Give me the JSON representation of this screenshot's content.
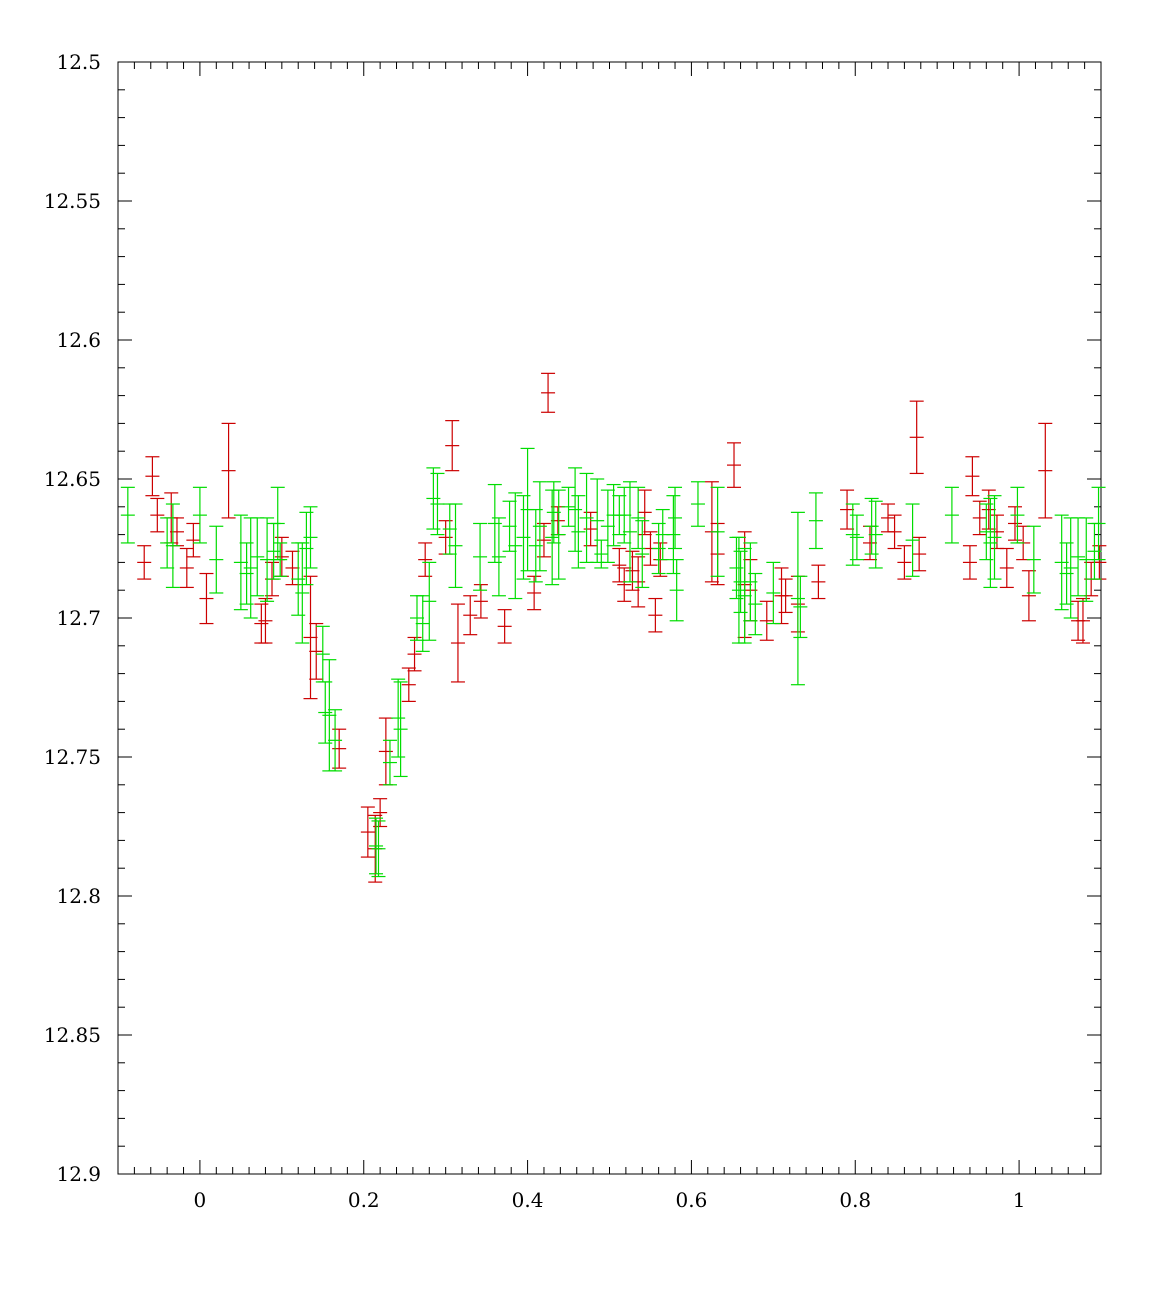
{
  "chart_data": {
    "type": "scatter",
    "title": "",
    "xlabel": "",
    "ylabel": "",
    "xlim": [
      -0.1,
      1.1
    ],
    "ylim": [
      12.5,
      12.9
    ],
    "y_inverted": true,
    "grid": false,
    "xticks": [
      0,
      0.2,
      0.4,
      0.6,
      0.8,
      1
    ],
    "xtick_labels": [
      "0",
      "0.2",
      "0.4",
      "0.6",
      "0.8",
      "1"
    ],
    "yticks": [
      12.5,
      12.55,
      12.6,
      12.65,
      12.7,
      12.75,
      12.8,
      12.85,
      12.9
    ],
    "ytick_labels": [
      "12.5",
      "12.55",
      "12.6",
      "12.65",
      "12.7",
      "12.75",
      "12.8",
      "12.85",
      "12.9"
    ],
    "series": [
      {
        "color": "#cc0000",
        "points": [
          [
            -0.068,
            12.68,
            0.006
          ],
          [
            -0.058,
            12.649,
            0.007
          ],
          [
            -0.052,
            12.663,
            0.006
          ],
          [
            -0.035,
            12.664,
            0.009
          ],
          [
            -0.028,
            12.669,
            0.005
          ],
          [
            -0.016,
            12.682,
            0.007
          ],
          [
            -0.008,
            12.672,
            0.006
          ],
          [
            0.008,
            12.693,
            0.009
          ],
          [
            0.035,
            12.647,
            0.017
          ],
          [
            0.075,
            12.702,
            0.007
          ],
          [
            0.08,
            12.701,
            0.008
          ],
          [
            0.088,
            12.686,
            0.006
          ],
          [
            0.1,
            12.678,
            0.007
          ],
          [
            0.113,
            12.682,
            0.006
          ],
          [
            0.135,
            12.707,
            0.022
          ],
          [
            0.142,
            12.712,
            0.01
          ],
          [
            0.17,
            12.747,
            0.007
          ],
          [
            0.205,
            12.777,
            0.009
          ],
          [
            0.214,
            12.783,
            0.012
          ],
          [
            0.22,
            12.77,
            0.005
          ],
          [
            0.227,
            12.748,
            0.012
          ],
          [
            0.255,
            12.724,
            0.006
          ],
          [
            0.262,
            12.713,
            0.006
          ],
          [
            0.275,
            12.679,
            0.006
          ],
          [
            0.3,
            12.671,
            0.006
          ],
          [
            0.308,
            12.638,
            0.009
          ],
          [
            0.315,
            12.709,
            0.014
          ],
          [
            0.33,
            12.699,
            0.007
          ],
          [
            0.343,
            12.694,
            0.006
          ],
          [
            0.372,
            12.703,
            0.006
          ],
          [
            0.408,
            12.691,
            0.006
          ],
          [
            0.42,
            12.672,
            0.006
          ],
          [
            0.425,
            12.619,
            0.007
          ],
          [
            0.437,
            12.665,
            0.005
          ],
          [
            0.477,
            12.668,
            0.006
          ],
          [
            0.512,
            12.681,
            0.006
          ],
          [
            0.518,
            12.688,
            0.006
          ],
          [
            0.528,
            12.683,
            0.007
          ],
          [
            0.535,
            12.687,
            0.009
          ],
          [
            0.543,
            12.662,
            0.008
          ],
          [
            0.55,
            12.675,
            0.006
          ],
          [
            0.556,
            12.699,
            0.006
          ],
          [
            0.562,
            12.679,
            0.006
          ],
          [
            0.625,
            12.669,
            0.018
          ],
          [
            0.632,
            12.677,
            0.011
          ],
          [
            0.652,
            12.645,
            0.008
          ],
          [
            0.665,
            12.688,
            0.019
          ],
          [
            0.672,
            12.69,
            0.011
          ],
          [
            0.692,
            12.701,
            0.007
          ],
          [
            0.71,
            12.692,
            0.01
          ],
          [
            0.715,
            12.692,
            0.006
          ],
          [
            0.73,
            12.695,
            0.01
          ],
          [
            0.755,
            12.687,
            0.006
          ],
          [
            0.79,
            12.661,
            0.007
          ],
          [
            0.818,
            12.673,
            0.006
          ],
          [
            0.84,
            12.664,
            0.005
          ],
          [
            0.848,
            12.669,
            0.006
          ],
          [
            0.86,
            12.68,
            0.006
          ],
          [
            0.875,
            12.635,
            0.013
          ],
          [
            0.878,
            12.677,
            0.006
          ],
          [
            0.94,
            12.68,
            0.006
          ],
          [
            0.943,
            12.649,
            0.007
          ],
          [
            0.952,
            12.664,
            0.006
          ],
          [
            0.963,
            12.661,
            0.007
          ],
          [
            0.973,
            12.669,
            0.006
          ],
          [
            0.985,
            12.682,
            0.007
          ],
          [
            0.995,
            12.666,
            0.006
          ],
          [
            1.005,
            12.673,
            0.006
          ],
          [
            1.012,
            12.692,
            0.009
          ],
          [
            1.032,
            12.647,
            0.017
          ],
          [
            1.072,
            12.701,
            0.007
          ],
          [
            1.078,
            12.701,
            0.008
          ],
          [
            1.088,
            12.686,
            0.006
          ],
          [
            1.098,
            12.68,
            0.006
          ]
        ]
      },
      {
        "color": "#00dd00",
        "points": [
          [
            -0.088,
            12.663,
            0.01
          ],
          [
            -0.04,
            12.673,
            0.009
          ],
          [
            -0.033,
            12.674,
            0.015
          ],
          [
            0.0,
            12.663,
            0.01
          ],
          [
            0.02,
            12.679,
            0.012
          ],
          [
            0.05,
            12.68,
            0.017
          ],
          [
            0.057,
            12.684,
            0.011
          ],
          [
            0.062,
            12.682,
            0.018
          ],
          [
            0.07,
            12.678,
            0.014
          ],
          [
            0.082,
            12.679,
            0.015
          ],
          [
            0.09,
            12.676,
            0.01
          ],
          [
            0.095,
            12.666,
            0.013
          ],
          [
            0.098,
            12.679,
            0.006
          ],
          [
            0.12,
            12.686,
            0.013
          ],
          [
            0.125,
            12.691,
            0.018
          ],
          [
            0.13,
            12.675,
            0.013
          ],
          [
            0.135,
            12.671,
            0.011
          ],
          [
            0.15,
            12.713,
            0.01
          ],
          [
            0.153,
            12.734,
            0.011
          ],
          [
            0.158,
            12.735,
            0.02
          ],
          [
            0.165,
            12.744,
            0.011
          ],
          [
            0.215,
            12.782,
            0.01
          ],
          [
            0.218,
            12.783,
            0.01
          ],
          [
            0.232,
            12.752,
            0.008
          ],
          [
            0.242,
            12.736,
            0.014
          ],
          [
            0.245,
            12.74,
            0.017
          ],
          [
            0.265,
            12.7,
            0.008
          ],
          [
            0.272,
            12.702,
            0.01
          ],
          [
            0.28,
            12.694,
            0.014
          ],
          [
            0.285,
            12.657,
            0.011
          ],
          [
            0.29,
            12.659,
            0.011
          ],
          [
            0.305,
            12.668,
            0.009
          ],
          [
            0.312,
            12.674,
            0.015
          ],
          [
            0.342,
            12.678,
            0.012
          ],
          [
            0.36,
            12.666,
            0.014
          ],
          [
            0.365,
            12.678,
            0.014
          ],
          [
            0.378,
            12.667,
            0.009
          ],
          [
            0.385,
            12.674,
            0.019
          ],
          [
            0.395,
            12.671,
            0.015
          ],
          [
            0.4,
            12.661,
            0.022
          ],
          [
            0.41,
            12.674,
            0.013
          ],
          [
            0.415,
            12.667,
            0.016
          ],
          [
            0.43,
            12.671,
            0.017
          ],
          [
            0.432,
            12.662,
            0.011
          ],
          [
            0.438,
            12.67,
            0.016
          ],
          [
            0.45,
            12.66,
            0.007
          ],
          [
            0.458,
            12.661,
            0.015
          ],
          [
            0.462,
            12.669,
            0.013
          ],
          [
            0.472,
            12.664,
            0.016
          ],
          [
            0.485,
            12.665,
            0.015
          ],
          [
            0.49,
            12.677,
            0.005
          ],
          [
            0.498,
            12.667,
            0.013
          ],
          [
            0.505,
            12.663,
            0.011
          ],
          [
            0.512,
            12.663,
            0.007
          ],
          [
            0.518,
            12.663,
            0.01
          ],
          [
            0.525,
            12.669,
            0.018
          ],
          [
            0.535,
            12.664,
            0.011
          ],
          [
            0.54,
            12.677,
            0.012
          ],
          [
            0.56,
            12.675,
            0.009
          ],
          [
            0.565,
            12.67,
            0.009
          ],
          [
            0.578,
            12.67,
            0.014
          ],
          [
            0.58,
            12.664,
            0.011
          ],
          [
            0.582,
            12.69,
            0.011
          ],
          [
            0.608,
            12.659,
            0.008
          ],
          [
            0.632,
            12.669,
            0.016
          ],
          [
            0.655,
            12.682,
            0.011
          ],
          [
            0.658,
            12.69,
            0.019
          ],
          [
            0.66,
            12.687,
            0.011
          ],
          [
            0.665,
            12.692,
            0.017
          ],
          [
            0.672,
            12.687,
            0.014
          ],
          [
            0.678,
            12.695,
            0.011
          ],
          [
            0.7,
            12.691,
            0.011
          ],
          [
            0.73,
            12.693,
            0.031
          ],
          [
            0.733,
            12.696,
            0.011
          ],
          [
            0.752,
            12.665,
            0.01
          ],
          [
            0.797,
            12.67,
            0.011
          ],
          [
            0.802,
            12.671,
            0.008
          ],
          [
            0.82,
            12.667,
            0.01
          ],
          [
            0.825,
            12.67,
            0.012
          ],
          [
            0.87,
            12.672,
            0.013
          ],
          [
            0.918,
            12.663,
            0.01
          ],
          [
            0.96,
            12.669,
            0.01
          ],
          [
            0.965,
            12.673,
            0.016
          ],
          [
            0.97,
            12.671,
            0.015
          ],
          [
            0.998,
            12.663,
            0.01
          ],
          [
            1.018,
            12.679,
            0.012
          ],
          [
            1.052,
            12.68,
            0.017
          ],
          [
            1.058,
            12.684,
            0.011
          ],
          [
            1.063,
            12.682,
            0.018
          ],
          [
            1.072,
            12.678,
            0.014
          ],
          [
            1.082,
            12.679,
            0.015
          ],
          [
            1.092,
            12.676,
            0.01
          ],
          [
            1.097,
            12.666,
            0.013
          ]
        ]
      }
    ]
  }
}
